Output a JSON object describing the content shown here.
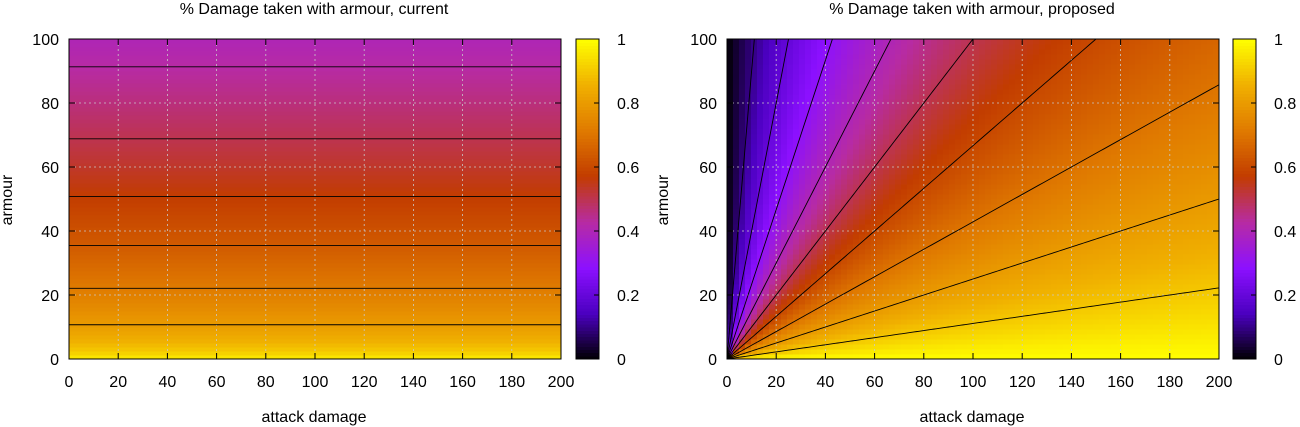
{
  "chart_data": [
    {
      "type": "heatmap",
      "title": "% Damage taken with armour, current",
      "xlabel": "attack damage",
      "ylabel": "armour",
      "xlim": [
        0,
        200
      ],
      "ylim": [
        0,
        100
      ],
      "xticks": [
        "0",
        "20",
        "40",
        "60",
        "80",
        "100",
        "120",
        "140",
        "160",
        "180",
        "200"
      ],
      "yticks": [
        "0",
        "20",
        "40",
        "60",
        "80",
        "100"
      ],
      "colorbar": {
        "range": [
          0,
          1
        ],
        "ticks": [
          "0",
          "0.2",
          "0.4",
          "0.6",
          "0.8",
          "1"
        ]
      },
      "colormap": [
        "#000000",
        "#4b00c0",
        "#8c10ff",
        "#b72ba3",
        "#c23c00",
        "#e07a00",
        "#f0b000",
        "#ffff00"
      ],
      "model": "current",
      "contour_levels_armour": [
        0,
        10.7,
        22.1,
        35.5,
        50.8,
        68.8,
        91.3
      ],
      "grid": true
    },
    {
      "type": "heatmap",
      "title": "% Damage taken with armour, proposed",
      "xlabel": "attack damage",
      "ylabel": "armour",
      "xlim": [
        0,
        200
      ],
      "ylim": [
        0,
        100
      ],
      "xticks": [
        "0",
        "20",
        "40",
        "60",
        "80",
        "100",
        "120",
        "140",
        "160",
        "180",
        "200"
      ],
      "yticks": [
        "0",
        "20",
        "40",
        "60",
        "80",
        "100"
      ],
      "colorbar": {
        "range": [
          0,
          1
        ],
        "ticks": [
          "0",
          "0.2",
          "0.4",
          "0.6",
          "0.8",
          "1"
        ]
      },
      "colormap": [
        "#000000",
        "#4b00c0",
        "#8c10ff",
        "#b72ba3",
        "#c23c00",
        "#e07a00",
        "#f0b000",
        "#ffff00"
      ],
      "model": "proposed",
      "contour_levels": [
        0.1,
        0.2,
        0.3,
        0.4,
        0.5,
        0.6,
        0.7,
        0.8,
        0.9
      ],
      "grid": true
    }
  ]
}
